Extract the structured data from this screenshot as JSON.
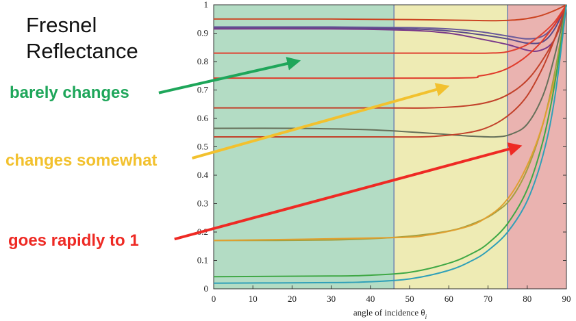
{
  "slide": {
    "title": "Fresnel\nReflectance",
    "callouts": [
      {
        "text": "barely changes",
        "color": "#1ea65a"
      },
      {
        "text": "changes somewhat",
        "color": "#f2c12e"
      },
      {
        "text": "goes rapidly to 1",
        "color": "#ee2a24"
      }
    ]
  },
  "chart_data": {
    "type": "line",
    "title": "",
    "xlabel": "angle of incidence θ",
    "xlabel_subscript": "i",
    "ylabel": "",
    "xlim": [
      0,
      90
    ],
    "ylim": [
      0,
      1
    ],
    "xticks": [
      0,
      10,
      20,
      30,
      40,
      50,
      60,
      70,
      80,
      90
    ],
    "yticks": [
      0,
      0.1,
      0.2,
      0.3,
      0.4,
      0.5,
      0.6,
      0.7,
      0.8,
      0.9,
      1
    ],
    "ytick_labels": [
      "0",
      "0.1",
      "0.2",
      "0.3",
      "0.4",
      "0.5",
      "0.6",
      "0.7",
      "0.8",
      "0.9",
      "1"
    ],
    "grid": false,
    "regions": [
      {
        "x": [
          0,
          46
        ],
        "color": "#b3dcc4"
      },
      {
        "x": [
          46,
          75
        ],
        "color": "#eeebb4"
      },
      {
        "x": [
          75,
          90
        ],
        "color": "#eab3b0"
      }
    ],
    "annotation_arrows": [
      {
        "color": "#1ea65a",
        "from": [
          -14,
          0.69
        ],
        "to": [
          21,
          0.8
        ]
      },
      {
        "color": "#f2c12e",
        "from": [
          -5.5,
          0.46
        ],
        "to": [
          59,
          0.71
        ]
      },
      {
        "color": "#ee2a24",
        "from": [
          -10,
          0.175
        ],
        "to": [
          77.5,
          0.5
        ]
      }
    ],
    "series": [
      {
        "color": "#cc4422",
        "x": [
          0,
          30,
          50,
          65,
          72,
          78,
          83,
          87,
          90
        ],
        "y": [
          0.95,
          0.95,
          0.948,
          0.945,
          0.944,
          0.948,
          0.96,
          0.98,
          1.0
        ]
      },
      {
        "color": "#6a5a9a",
        "x": [
          0,
          30,
          50,
          60,
          68,
          75,
          80,
          84,
          87,
          90
        ],
        "y": [
          0.922,
          0.922,
          0.92,
          0.915,
          0.905,
          0.89,
          0.88,
          0.89,
          0.93,
          1.0
        ]
      },
      {
        "color": "#5a4a8a",
        "x": [
          0,
          30,
          50,
          60,
          68,
          75,
          80,
          84,
          87,
          90
        ],
        "y": [
          0.918,
          0.918,
          0.915,
          0.908,
          0.895,
          0.88,
          0.865,
          0.87,
          0.915,
          1.0
        ]
      },
      {
        "color": "#7a3a8a",
        "x": [
          0,
          30,
          50,
          60,
          68,
          75,
          80,
          83,
          86,
          88,
          90
        ],
        "y": [
          0.915,
          0.915,
          0.91,
          0.9,
          0.88,
          0.86,
          0.84,
          0.838,
          0.86,
          0.91,
          1.0
        ]
      },
      {
        "color": "#e04030",
        "x": [
          0,
          60,
          70,
          75,
          80,
          84,
          87,
          90
        ],
        "y": [
          0.83,
          0.83,
          0.83,
          0.835,
          0.86,
          0.9,
          0.94,
          1.0
        ]
      },
      {
        "color": "#e03a2a",
        "x": [
          0,
          60,
          68,
          74,
          79,
          83,
          86,
          88,
          90
        ],
        "y": [
          0.742,
          0.742,
          0.75,
          0.77,
          0.81,
          0.86,
          0.91,
          0.95,
          1.0
        ]
      },
      {
        "color": "#c2412a",
        "x": [
          0,
          40,
          55,
          65,
          72,
          77,
          81,
          85,
          88,
          90
        ],
        "y": [
          0.637,
          0.637,
          0.637,
          0.645,
          0.665,
          0.7,
          0.75,
          0.83,
          0.91,
          1.0
        ]
      },
      {
        "color": "#66705a",
        "x": [
          0,
          20,
          40,
          55,
          65,
          72,
          76,
          80,
          84,
          87,
          90
        ],
        "y": [
          0.565,
          0.565,
          0.56,
          0.548,
          0.538,
          0.535,
          0.545,
          0.58,
          0.68,
          0.82,
          1.0
        ]
      },
      {
        "color": "#c2412a",
        "x": [
          0,
          40,
          55,
          65,
          71,
          76,
          80,
          84,
          87,
          90
        ],
        "y": [
          0.535,
          0.535,
          0.536,
          0.55,
          0.575,
          0.62,
          0.68,
          0.78,
          0.88,
          1.0
        ]
      },
      {
        "color": "#a3a040",
        "x": [
          0,
          30,
          45,
          55,
          62,
          68,
          72,
          76,
          80,
          84,
          87,
          90
        ],
        "y": [
          0.17,
          0.172,
          0.18,
          0.193,
          0.21,
          0.24,
          0.27,
          0.32,
          0.42,
          0.58,
          0.76,
          1.0
        ]
      },
      {
        "color": "#e0a030",
        "x": [
          0,
          45,
          55,
          65,
          70,
          74,
          78,
          82,
          85,
          88,
          90
        ],
        "y": [
          0.17,
          0.18,
          0.19,
          0.22,
          0.255,
          0.3,
          0.38,
          0.5,
          0.63,
          0.8,
          1.0
        ]
      },
      {
        "color": "#3fa845",
        "x": [
          0,
          30,
          40,
          50,
          60,
          66,
          70,
          75,
          80,
          84,
          87,
          90
        ],
        "y": [
          0.043,
          0.045,
          0.048,
          0.058,
          0.09,
          0.125,
          0.16,
          0.23,
          0.35,
          0.52,
          0.72,
          1.0
        ]
      },
      {
        "color": "#2fa0b8",
        "x": [
          0,
          30,
          40,
          50,
          60,
          66,
          70,
          75,
          80,
          84,
          87,
          90
        ],
        "y": [
          0.02,
          0.022,
          0.025,
          0.035,
          0.065,
          0.1,
          0.135,
          0.2,
          0.31,
          0.47,
          0.67,
          1.0
        ]
      }
    ]
  }
}
